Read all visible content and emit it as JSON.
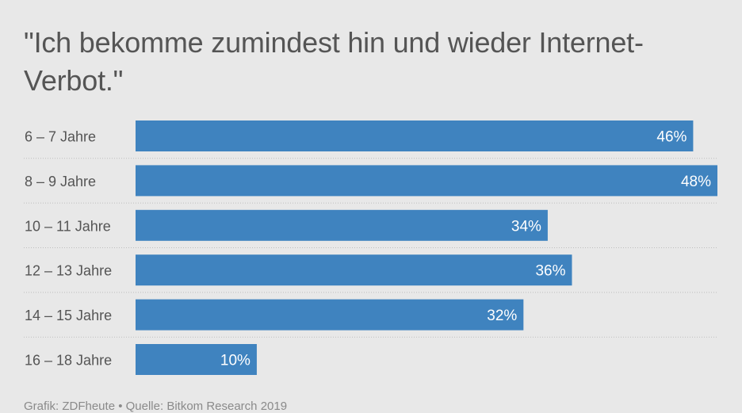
{
  "title": "\"Ich bekomme zumindest hin und wieder Internet-Verbot.\"",
  "footer": "Grafik: ZDFheute • Quelle: Bitkom Research 2019",
  "colors": {
    "bar": "#3f83bf",
    "background": "#e8e8e8",
    "label_text": "#555555",
    "value_text": "#ffffff",
    "separator": "#bdbdbd"
  },
  "chart_data": {
    "type": "bar",
    "orientation": "horizontal",
    "categories": [
      "6 – 7 Jahre",
      "8 – 9 Jahre",
      "10 – 11 Jahre",
      "12 – 13 Jahre",
      "14 – 15 Jahre",
      "16 – 18 Jahre"
    ],
    "values": [
      46,
      48,
      34,
      36,
      32,
      10
    ],
    "value_labels": [
      "46%",
      "48%",
      "34%",
      "36%",
      "32%",
      "10%"
    ],
    "unit": "%",
    "xlim": [
      0,
      48
    ],
    "grid": false,
    "legend": "none"
  }
}
